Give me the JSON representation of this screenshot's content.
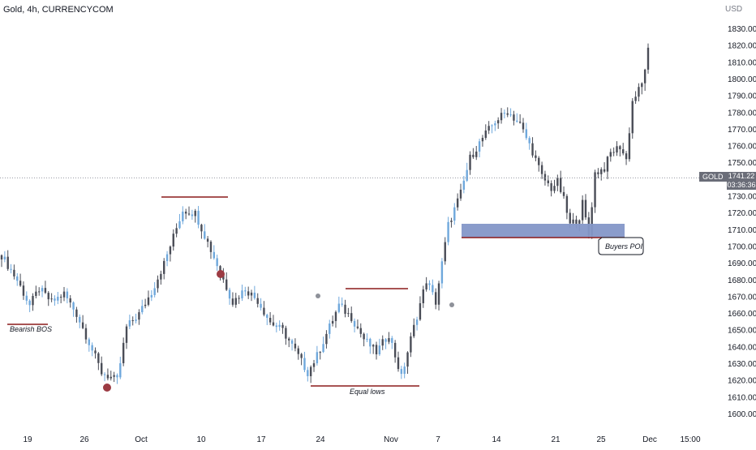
{
  "header": {
    "title": "Gold, 4h, CURRENCYCOM",
    "currency": "USD"
  },
  "price_tag": {
    "symbol": "GOLD",
    "price": "1741.22",
    "countdown": "03:36:36"
  },
  "colors": {
    "candle": "#4a4d57",
    "blue_candle": "#6fa8dc",
    "level_line": "#8b1a1a",
    "poi_zone": "#8497c8",
    "marker_red": "#9c3b43",
    "marker_grey": "#8e9199"
  },
  "annotations": {
    "bearish_bos": "Bearish BOS",
    "equal_lows": "Equal lows",
    "buyers_poi": "Buyers POI"
  },
  "chart_data": {
    "type": "candlestick",
    "y_axis_labels": [
      "1830.00",
      "1820.00",
      "1810.00",
      "1800.00",
      "1790.00",
      "1780.00",
      "1770.00",
      "1760.00",
      "1750.00",
      "1740.00",
      "1730.00",
      "1720.00",
      "1710.00",
      "1700.00",
      "1690.00",
      "1680.00",
      "1670.00",
      "1660.00",
      "1650.00",
      "1640.00",
      "1630.00",
      "1620.00",
      "1610.00",
      "1600.00"
    ],
    "x_axis_labels": [
      "19",
      "26",
      "Oct",
      "10",
      "17",
      "24",
      "Nov",
      "7",
      "14",
      "21",
      "25",
      "Dec",
      "15:00"
    ],
    "ylim": [
      1593,
      1838
    ],
    "waypoints": [
      [
        0,
        1695
      ],
      [
        5,
        1680
      ],
      [
        9,
        1665
      ],
      [
        12,
        1675
      ],
      [
        16,
        1667
      ],
      [
        20,
        1672
      ],
      [
        24,
        1660
      ],
      [
        28,
        1643
      ],
      [
        32,
        1625
      ],
      [
        37,
        1620
      ],
      [
        40,
        1652
      ],
      [
        44,
        1660
      ],
      [
        48,
        1673
      ],
      [
        52,
        1690
      ],
      [
        58,
        1722
      ],
      [
        62,
        1720
      ],
      [
        65,
        1707
      ],
      [
        70,
        1685
      ],
      [
        74,
        1667
      ],
      [
        78,
        1675
      ],
      [
        82,
        1668
      ],
      [
        86,
        1655
      ],
      [
        90,
        1650
      ],
      [
        94,
        1638
      ],
      [
        98,
        1625
      ],
      [
        101,
        1635
      ],
      [
        104,
        1648
      ],
      [
        108,
        1665
      ],
      [
        112,
        1658
      ],
      [
        116,
        1645
      ],
      [
        120,
        1637
      ],
      [
        124,
        1648
      ],
      [
        128,
        1622
      ],
      [
        131,
        1645
      ],
      [
        136,
        1680
      ],
      [
        139,
        1667
      ],
      [
        143,
        1713
      ],
      [
        147,
        1732
      ],
      [
        150,
        1753
      ],
      [
        154,
        1765
      ],
      [
        158,
        1775
      ],
      [
        162,
        1781
      ],
      [
        166,
        1773
      ],
      [
        170,
        1757
      ],
      [
        173,
        1742
      ],
      [
        176,
        1735
      ],
      [
        178,
        1739
      ],
      [
        180,
        1728
      ],
      [
        182,
        1713
      ],
      [
        185,
        1718
      ],
      [
        186,
        1726
      ],
      [
        188,
        1707
      ],
      [
        190,
        1744
      ],
      [
        193,
        1747
      ],
      [
        195,
        1756
      ],
      [
        198,
        1760
      ],
      [
        200,
        1752
      ],
      [
        202,
        1787
      ],
      [
        205,
        1797
      ],
      [
        207,
        1817
      ]
    ]
  }
}
